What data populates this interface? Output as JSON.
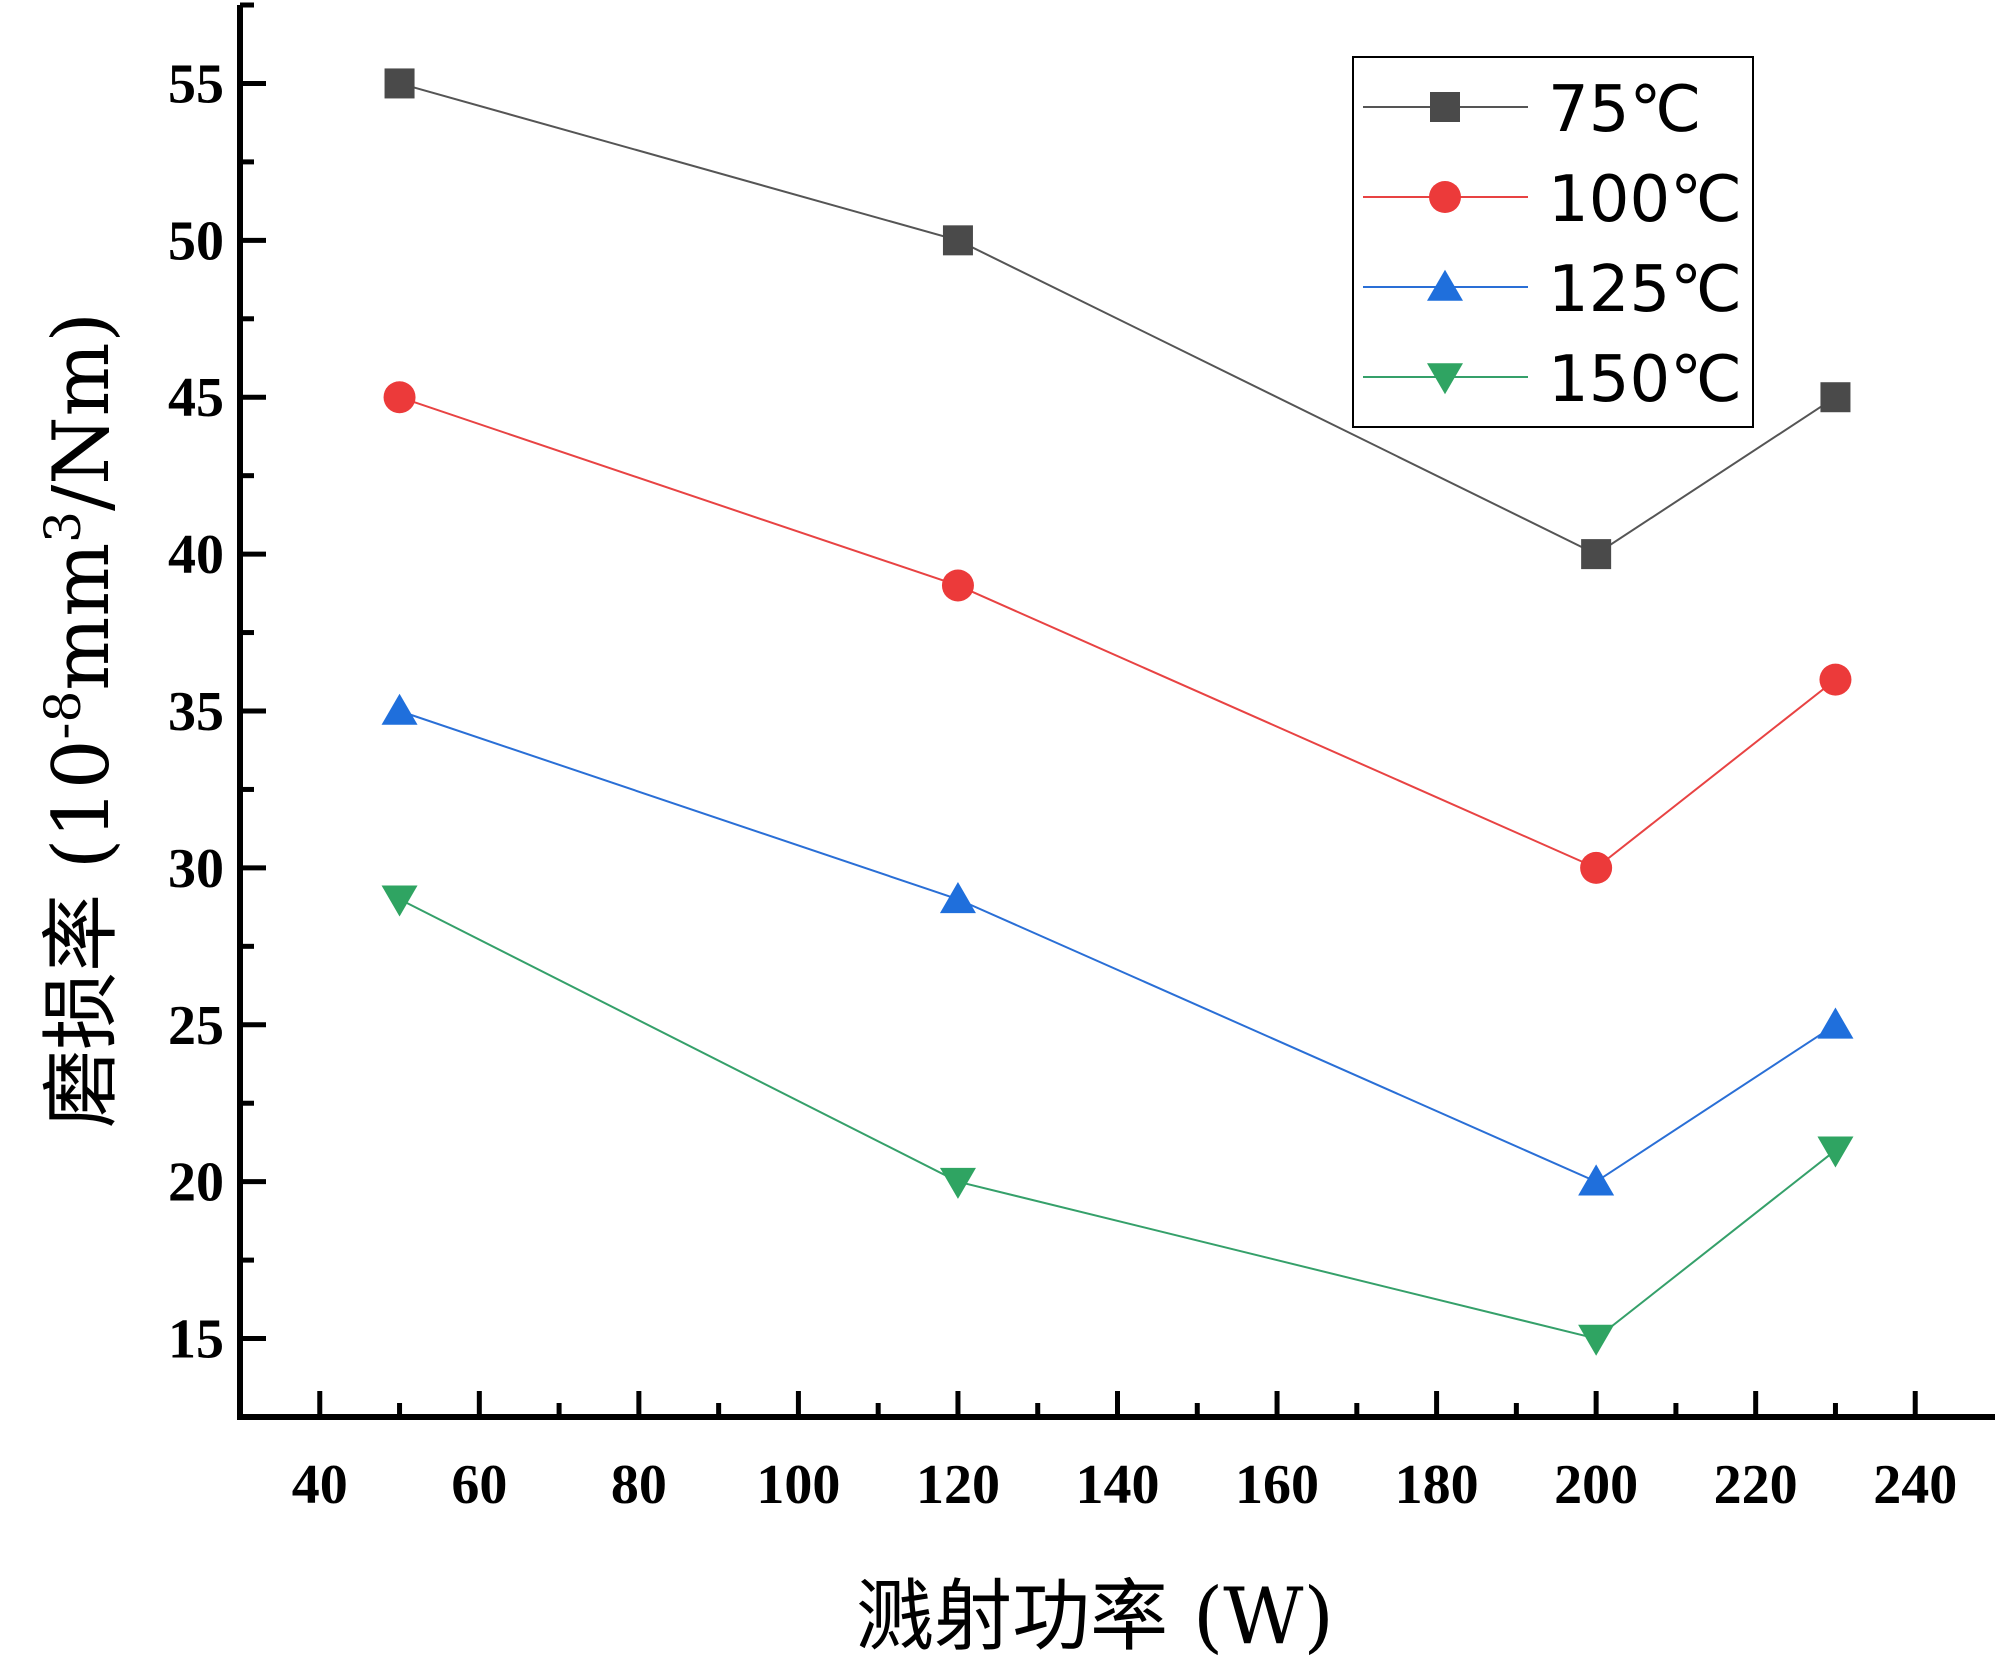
{
  "chart_data": {
    "type": "line",
    "title": "",
    "xlabel": "溅射功率 (W)",
    "ylabel": "磨损率 (10⁻⁸mm³/Nm)",
    "ylabel_parts": {
      "main": "磨损率 (10",
      "exp1": "-8",
      "mid": "mm",
      "exp2": "3",
      "tail": "/Nm)"
    },
    "xlim": [
      30,
      250
    ],
    "ylim": [
      12.5,
      57.5
    ],
    "xticks": [
      40,
      60,
      80,
      100,
      120,
      140,
      160,
      180,
      200,
      220,
      240
    ],
    "yticks": [
      15,
      20,
      25,
      30,
      35,
      40,
      45,
      50,
      55
    ],
    "x": [
      50,
      120,
      200,
      230
    ],
    "legend_position": "top-right",
    "series": [
      {
        "name": "75℃",
        "marker": "square",
        "color": "#4a4a4a",
        "line_color": "#555555",
        "values": [
          55,
          50,
          40,
          45
        ]
      },
      {
        "name": "100℃",
        "marker": "circle",
        "color": "#ec3a3a",
        "line_color": "#e84343",
        "values": [
          45,
          39,
          30,
          36
        ]
      },
      {
        "name": "125℃",
        "marker": "triangle-up",
        "color": "#1f6fdc",
        "line_color": "#2a6fd6",
        "values": [
          35,
          29,
          20,
          25
        ]
      },
      {
        "name": "150℃",
        "marker": "triangle-down",
        "color": "#2fa462",
        "line_color": "#35a06a",
        "values": [
          29,
          20,
          15,
          21
        ]
      }
    ]
  }
}
